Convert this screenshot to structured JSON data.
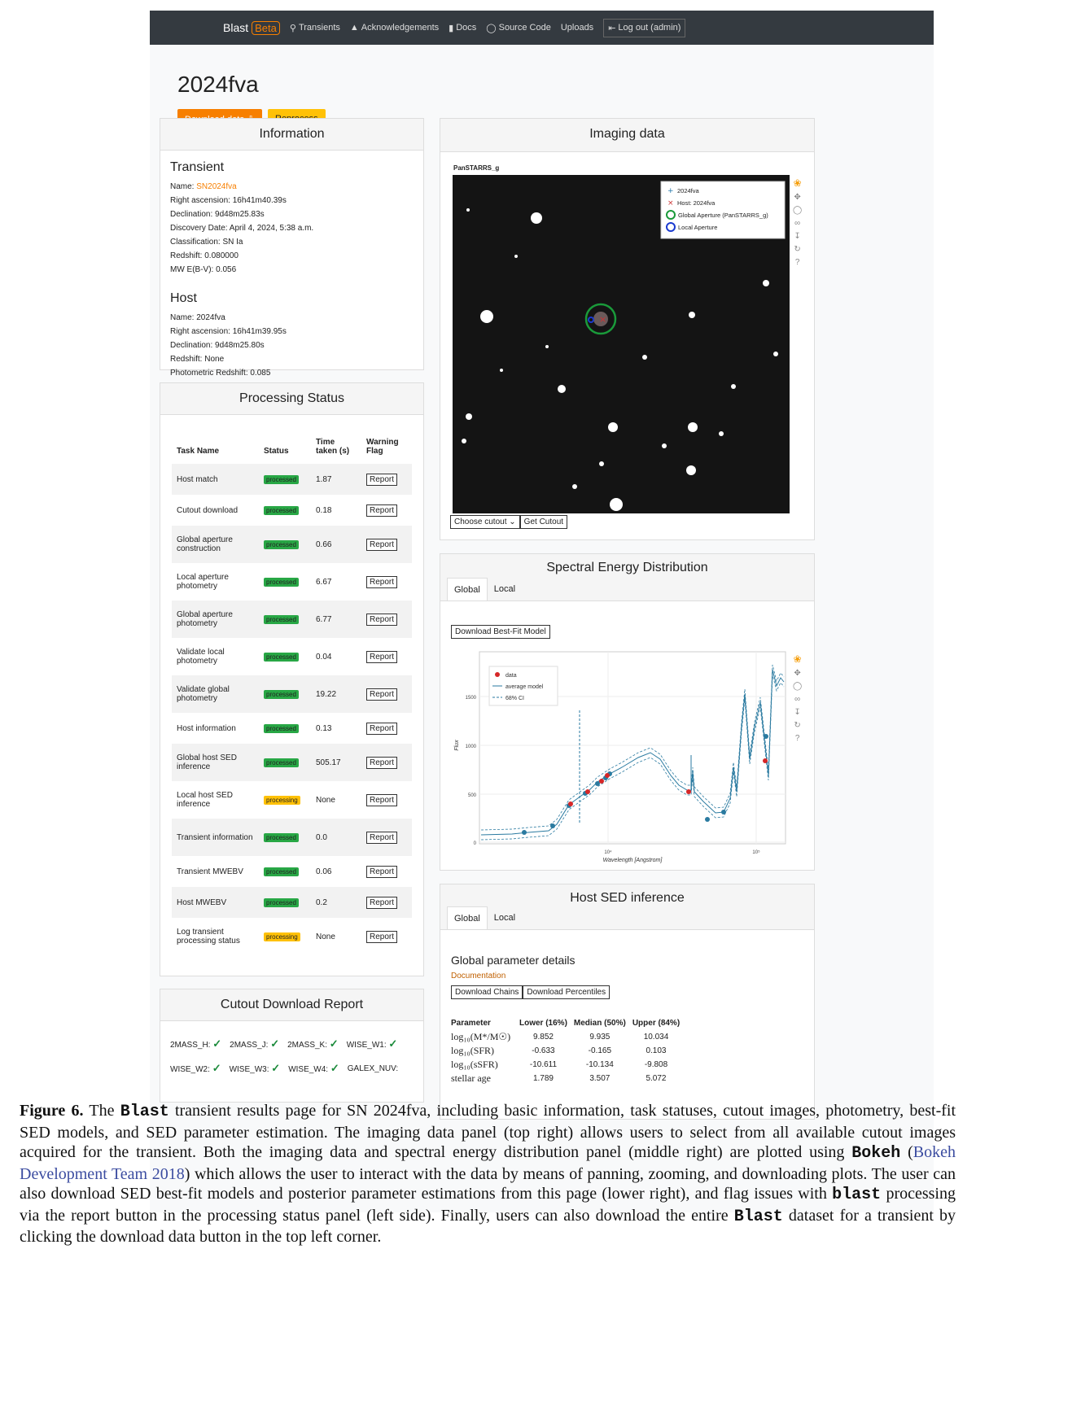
{
  "nav": {
    "brand": "Blast",
    "beta": "Beta",
    "items": [
      "Transients",
      "Acknowledgements",
      "Docs",
      "Source Code",
      "Uploads"
    ],
    "logout": "Log out (admin)"
  },
  "page_title": "2024fva",
  "buttons": {
    "download": "Download data",
    "reprocess": "Reprocess"
  },
  "info": {
    "head": "Information",
    "transient_title": "Transient",
    "transient_name_label": "Name:",
    "transient_name": "SN2024fva",
    "transient_lines": [
      "Right ascension: 16h41m40.39s",
      "Declination: 9d48m25.83s",
      "Discovery Date: April 4, 2024, 5:38 a.m.",
      "Classification: SN Ia",
      "Redshift: 0.080000",
      "MW E(B-V): 0.056"
    ],
    "host_title": "Host",
    "host_lines": [
      "Name: 2024fva",
      "Right ascension: 16h41m39.95s",
      "Declination: 9d48m25.80s",
      "Redshift: None",
      "Photometric Redshift: 0.085"
    ]
  },
  "status": {
    "head": "Processing Status",
    "headers": [
      "Task Name",
      "Status",
      "Time taken (s)",
      "Warning Flag"
    ],
    "report_label": "Report",
    "rows": [
      {
        "task": "Host match",
        "status": "processed",
        "time": "1.87"
      },
      {
        "task": "Cutout download",
        "status": "processed",
        "time": "0.18"
      },
      {
        "task": "Global aperture construction",
        "status": "processed",
        "time": "0.66"
      },
      {
        "task": "Local aperture photometry",
        "status": "processed",
        "time": "6.67"
      },
      {
        "task": "Global aperture photometry",
        "status": "processed",
        "time": "6.77"
      },
      {
        "task": "Validate local photometry",
        "status": "processed",
        "time": "0.04"
      },
      {
        "task": "Validate global photometry",
        "status": "processed",
        "time": "19.22"
      },
      {
        "task": "Host information",
        "status": "processed",
        "time": "0.13"
      },
      {
        "task": "Global host SED inference",
        "status": "processed",
        "time": "505.17"
      },
      {
        "task": "Local host SED inference",
        "status": "processing",
        "time": "None"
      },
      {
        "task": "Transient information",
        "status": "processed",
        "time": "0.0"
      },
      {
        "task": "Transient MWEBV",
        "status": "processed",
        "time": "0.06"
      },
      {
        "task": "Host MWEBV",
        "status": "processed",
        "time": "0.2"
      },
      {
        "task": "Log transient processing status",
        "status": "processing",
        "time": "None"
      }
    ]
  },
  "cutout": {
    "head": "Cutout Download Report",
    "row1": [
      "2MASS_H:",
      "2MASS_J:",
      "2MASS_K:",
      "WISE_W1:"
    ],
    "row2": [
      "WISE_W2:",
      "WISE_W3:",
      "WISE_W4:",
      "GALEX_NUV:"
    ]
  },
  "imaging": {
    "head": "Imaging data",
    "filter_label": "PanSTARRS_g",
    "legend": [
      "2024fva",
      "Host: 2024fva",
      "Global Aperture (PanSTARRS_g)",
      "Local Aperture"
    ],
    "choose": "Choose cutout",
    "get": "Get Cutout"
  },
  "sed": {
    "head": "Spectral Energy Distribution",
    "tabs": [
      "Global",
      "Local"
    ],
    "download": "Download Best-Fit Model",
    "legend": [
      "data",
      "average model",
      "68% CI"
    ],
    "ylabel": "Flux",
    "xlabel": "Wavelength [Angstrom]",
    "yticks": [
      "1500",
      "1000",
      "500",
      "0"
    ],
    "xticks": [
      "10⁴",
      "10⁵"
    ]
  },
  "host_sed": {
    "head": "Host SED inference",
    "tabs": [
      "Global",
      "Local"
    ],
    "title": "Global parameter details",
    "doc": "Documentation",
    "btn_chains": "Download Chains",
    "btn_pct": "Download Percentiles",
    "headers": [
      "Parameter",
      "Lower (16%)",
      "Median (50%)",
      "Upper (84%)"
    ],
    "rows": [
      [
        "log₁₀(M*/M☉)",
        "9.852",
        "9.935",
        "10.034"
      ],
      [
        "log₁₀(SFR)",
        "-0.633",
        "-0.165",
        "0.103"
      ],
      [
        "log₁₀(sSFR)",
        "-10.611",
        "-10.134",
        "-9.808"
      ],
      [
        "stellar age",
        "1.789",
        "3.507",
        "5.072"
      ]
    ]
  },
  "caption": {
    "label": "Figure 6.",
    "t1": " The ",
    "blast": "Blast",
    "t2": " transient results page for SN 2024fva, including basic information, task statuses, cutout images, photometry, best-fit SED models, and SED parameter estimation. The imaging data panel (top right) allows users to select from all available cutout images acquired for the transient. Both the imaging data and spectral energy distribution panel (middle right) are plotted using ",
    "bokeh": "Bokeh",
    "t3": " (",
    "cite": "Bokeh Development Team 2018",
    "t4": ") which allows the user to interact with the data by means of panning, zooming, and downloading plots. The user can also download SED best-fit models and posterior parameter estimations from this page (lower right), and flag issues with ",
    "blast_lower": "blast",
    "t5": " processing via the report button in the processing status panel (left side). Finally, users can also download the entire ",
    "t6": " dataset for a transient by clicking the download data button in the top left corner."
  }
}
